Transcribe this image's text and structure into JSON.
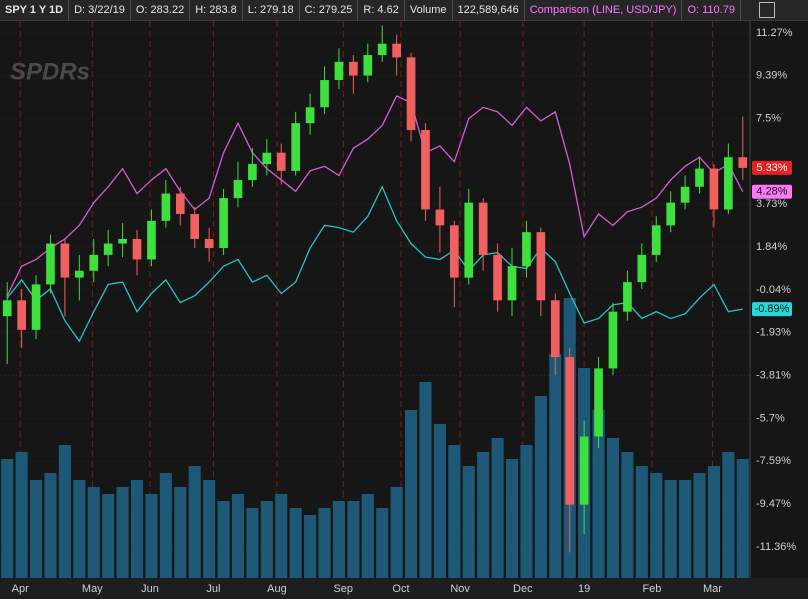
{
  "header": {
    "symbol": "SPY 1 Y 1D",
    "date": "D: 3/22/19",
    "open": "O: 283.22",
    "high": "H: 283.8",
    "low": "L: 279.18",
    "close": "C: 279.25",
    "range": "R: 4.62",
    "volume_label": "Volume",
    "volume": "122,589,646",
    "comparison_open": "O: 110.79"
  },
  "chart_data": {
    "type": "candlestick",
    "watermark": "SPDRs",
    "ylim": [
      -12.73,
      11.8
    ],
    "yticks": [
      {
        "value": 11.27,
        "label": "11.27%"
      },
      {
        "value": 9.39,
        "label": "9.39%"
      },
      {
        "value": 7.5,
        "label": "7.5%"
      },
      {
        "value": 3.73,
        "label": "3.73%"
      },
      {
        "value": 1.84,
        "label": "1.84%"
      },
      {
        "value": -0.04,
        "label": "-0.04%"
      },
      {
        "value": -1.93,
        "label": "-1.93%"
      },
      {
        "value": -3.81,
        "label": "-3.81%"
      },
      {
        "value": -5.7,
        "label": "-5.7%"
      },
      {
        "value": -7.59,
        "label": "-7.59%"
      },
      {
        "value": -9.47,
        "label": "-9.47%"
      },
      {
        "value": -11.36,
        "label": "-11.36%"
      }
    ],
    "xlim": [
      -0.5,
      51.5
    ],
    "xticks": [
      {
        "value": 0.9,
        "label": "Apr"
      },
      {
        "value": 5.9,
        "label": "May"
      },
      {
        "value": 9.9,
        "label": "Jun"
      },
      {
        "value": 14.3,
        "label": "Jul"
      },
      {
        "value": 18.7,
        "label": "Aug"
      },
      {
        "value": 23.3,
        "label": "Sep"
      },
      {
        "value": 27.3,
        "label": "Oct"
      },
      {
        "value": 31.4,
        "label": "Nov"
      },
      {
        "value": 35.75,
        "label": "Dec"
      },
      {
        "value": 40,
        "label": "19"
      },
      {
        "value": 44.7,
        "label": "Feb"
      },
      {
        "value": 48.9,
        "label": "Mar"
      }
    ],
    "up_color": "#3ee03e",
    "down_color": "#f06060",
    "badge_color": "#e8201f",
    "open": [
      -1.2,
      -0.5,
      -1.8,
      0.2,
      2.0,
      0.5,
      0.8,
      1.5,
      2.0,
      2.2,
      1.3,
      3.0,
      4.2,
      3.3,
      2.2,
      1.8,
      4.0,
      4.8,
      5.5,
      6.0,
      5.2,
      7.3,
      8.0,
      9.2,
      10.0,
      9.4,
      10.3,
      10.8,
      10.2,
      7.0,
      3.5,
      2.8,
      0.5,
      3.8,
      1.5,
      -0.5,
      1.0,
      2.5,
      -0.5,
      -3.0,
      -9.5,
      -6.5,
      -3.5,
      -1.0,
      0.3,
      1.5,
      2.8,
      3.8,
      4.5,
      5.3,
      3.5,
      5.8
    ],
    "high": [
      0.3,
      0,
      0.6,
      2.4,
      2.2,
      1.5,
      2.2,
      2.6,
      2.9,
      2.6,
      3.5,
      4.8,
      4.5,
      3.6,
      2.7,
      4.4,
      5.6,
      6.2,
      6.6,
      6.4,
      7.8,
      8.6,
      9.8,
      10.6,
      10.3,
      10.8,
      11.6,
      11.2,
      10.4,
      7.3,
      4.5,
      3.0,
      4.4,
      4.0,
      2.0,
      1.8,
      3.0,
      2.7,
      -0.2,
      -2.6,
      -5.8,
      -3.0,
      -0.6,
      0.8,
      2.0,
      3.2,
      4.3,
      5.0,
      5.8,
      5.5,
      6.4,
      7.6
    ],
    "low": [
      -3.3,
      -2.6,
      -2.2,
      -0.2,
      -1.2,
      -0.5,
      0.3,
      1.0,
      1.4,
      0.6,
      1.0,
      2.7,
      2.8,
      1.8,
      1.2,
      1.5,
      3.6,
      4.5,
      5.0,
      4.6,
      5.0,
      6.8,
      7.7,
      8.8,
      8.6,
      9.1,
      10.0,
      9.4,
      6.5,
      3.0,
      1.6,
      -0.8,
      0.2,
      0.8,
      -1.0,
      -1.2,
      0.5,
      -1.2,
      -3.8,
      -11.6,
      -10.8,
      -7.0,
      -3.8,
      -1.4,
      0.0,
      1.2,
      2.5,
      3.5,
      4.2,
      2.7,
      3.3,
      4.8
    ],
    "close": [
      -0.5,
      -1.8,
      0.2,
      2.0,
      0.5,
      0.8,
      1.5,
      2.0,
      2.2,
      1.3,
      3.0,
      4.2,
      3.3,
      2.2,
      1.8,
      4.0,
      4.8,
      5.5,
      6.0,
      5.2,
      7.3,
      8.0,
      9.2,
      10.0,
      9.4,
      10.3,
      10.8,
      10.2,
      7.0,
      3.5,
      2.8,
      0.5,
      3.8,
      1.5,
      -0.5,
      1.0,
      2.5,
      -0.5,
      -3.0,
      -9.5,
      -6.5,
      -3.5,
      -1.0,
      0.3,
      1.5,
      2.8,
      3.8,
      4.5,
      5.3,
      3.5,
      5.8,
      5.33
    ],
    "last_label": "5.33%",
    "volume_color": "#1d5877",
    "volume": [
      85,
      90,
      70,
      75,
      95,
      70,
      65,
      60,
      65,
      70,
      60,
      75,
      65,
      80,
      70,
      55,
      60,
      50,
      55,
      60,
      50,
      45,
      50,
      55,
      55,
      60,
      50,
      65,
      120,
      140,
      110,
      95,
      80,
      90,
      100,
      85,
      95,
      130,
      160,
      200,
      150,
      120,
      100,
      90,
      80,
      75,
      70,
      70,
      75,
      80,
      90,
      85
    ],
    "lines": [
      {
        "name": "Comparison (LINE, USD/JPY)",
        "color": "#d65bd6",
        "badge_color": "#ff77ff",
        "last_label": "4.28%",
        "values": [
          -0.3,
          1.0,
          1.3,
          1.8,
          2.2,
          2.8,
          3.8,
          4.5,
          5.3,
          4.2,
          4.8,
          5.3,
          4.3,
          3.5,
          4.0,
          6.0,
          7.3,
          6.0,
          5.3,
          4.8,
          4.3,
          5.2,
          5.4,
          5.0,
          6.2,
          6.6,
          7.2,
          8.5,
          8.2,
          6.0,
          6.3,
          5.6,
          7.5,
          8.0,
          7.8,
          7.2,
          8.0,
          7.4,
          7.8,
          5.5,
          2.3,
          3.3,
          2.8,
          3.4,
          3.6,
          4.0,
          4.8,
          5.4,
          5.8,
          5.1,
          5.5,
          4.28
        ]
      },
      {
        "color": "#22c4c4",
        "badge_color": "#22d8d8",
        "last_label": "-0.89%",
        "values": [
          -0.4,
          0.4,
          -0.5,
          0.0,
          -1.4,
          -2.3,
          -1.0,
          0.2,
          0.3,
          -1.0,
          -0.2,
          0.4,
          -0.6,
          -0.3,
          0.3,
          1.0,
          1.3,
          0.3,
          0.6,
          -0.2,
          0.3,
          1.8,
          2.8,
          2.7,
          2.5,
          3.2,
          4.5,
          3.0,
          2.0,
          1.4,
          1.3,
          1.7,
          0.8,
          1.5,
          1.6,
          1.0,
          0.9,
          1.8,
          1.2,
          -0.2,
          -1.5,
          -1.3,
          -0.7,
          -0.6,
          -1.3,
          -1.0,
          -1.3,
          -1.1,
          -0.4,
          0.2,
          -1.0,
          -0.89
        ]
      }
    ]
  }
}
